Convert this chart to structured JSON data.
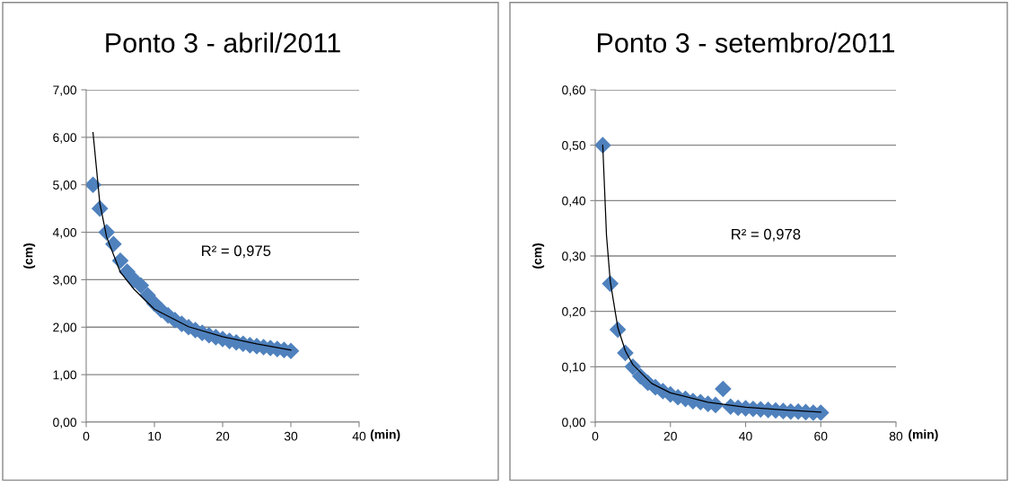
{
  "chart_data": [
    {
      "type": "scatter",
      "title": "Ponto 3 - abril/2011",
      "xlabel": "(min)",
      "ylabel": "(cm)",
      "annotations": [
        "R² = 0,975"
      ],
      "marker": "diamond",
      "grid": "y",
      "legend": false,
      "xlim": [
        0,
        40
      ],
      "xticks": [
        0,
        10,
        20,
        30,
        40
      ],
      "ylim": [
        0,
        7
      ],
      "yticks": [
        {
          "value": 0,
          "label": "0,00"
        },
        {
          "value": 1,
          "label": "1,00"
        },
        {
          "value": 2,
          "label": "2,00"
        },
        {
          "value": 3,
          "label": "3,00"
        },
        {
          "value": 4,
          "label": "4,00"
        },
        {
          "value": 5,
          "label": "5,00"
        },
        {
          "value": 6,
          "label": "6,00"
        },
        {
          "value": 7,
          "label": "7,00"
        }
      ],
      "series": [
        {
          "color": "#4f81bd",
          "x": [
            1,
            2,
            3,
            4,
            5,
            6,
            7,
            8,
            9,
            10,
            11,
            12,
            13,
            14,
            15,
            16,
            17,
            18,
            19,
            20,
            21,
            22,
            23,
            24,
            25,
            26,
            27,
            28,
            29,
            30
          ],
          "values": [
            5.0,
            4.5,
            4.0,
            3.75,
            3.4,
            3.17,
            3.0,
            2.88,
            2.67,
            2.5,
            2.36,
            2.25,
            2.15,
            2.07,
            2.0,
            1.94,
            1.88,
            1.83,
            1.79,
            1.75,
            1.71,
            1.68,
            1.65,
            1.62,
            1.6,
            1.58,
            1.56,
            1.54,
            1.52,
            1.5
          ]
        },
        {
          "type": "line",
          "color": "#000000",
          "marker": "none",
          "x": [
            1,
            2,
            3,
            5,
            7,
            10,
            15,
            20,
            25,
            30
          ],
          "values": [
            6.1,
            4.61,
            3.9,
            3.16,
            2.8,
            2.38,
            2.01,
            1.8,
            1.65,
            1.52
          ]
        }
      ]
    },
    {
      "type": "scatter",
      "title": "Ponto 3 - setembro/2011",
      "xlabel": "(min)",
      "ylabel": "(cm)",
      "annotations": [
        "R² = 0,978"
      ],
      "marker": "diamond",
      "grid": "y",
      "legend": false,
      "xlim": [
        0,
        80
      ],
      "xticks": [
        0,
        20,
        40,
        60,
        80
      ],
      "ylim": [
        0,
        0.6
      ],
      "yticks": [
        {
          "value": 0,
          "label": "0,00"
        },
        {
          "value": 0.1,
          "label": "0,10"
        },
        {
          "value": 0.2,
          "label": "0,20"
        },
        {
          "value": 0.3,
          "label": "0,30"
        },
        {
          "value": 0.4,
          "label": "0,40"
        },
        {
          "value": 0.5,
          "label": "0,50"
        },
        {
          "value": 0.6,
          "label": "0,60"
        }
      ],
      "series": [
        {
          "color": "#4f81bd",
          "x": [
            2,
            4,
            6,
            8,
            10,
            12,
            14,
            16,
            18,
            20,
            22,
            24,
            26,
            28,
            30,
            32,
            34,
            36,
            38,
            40,
            42,
            44,
            46,
            48,
            50,
            52,
            54,
            56,
            58,
            60
          ],
          "values": [
            0.5,
            0.25,
            0.167,
            0.125,
            0.1,
            0.083,
            0.071,
            0.063,
            0.056,
            0.05,
            0.045,
            0.042,
            0.038,
            0.036,
            0.033,
            0.031,
            0.06,
            0.028,
            0.026,
            0.025,
            0.024,
            0.023,
            0.022,
            0.021,
            0.02,
            0.019,
            0.019,
            0.018,
            0.017,
            0.017
          ]
        },
        {
          "type": "line",
          "color": "#000000",
          "marker": "none",
          "x": [
            2,
            3,
            4,
            6,
            8,
            10,
            15,
            20,
            30,
            40,
            50,
            60
          ],
          "values": [
            0.5,
            0.337,
            0.254,
            0.171,
            0.129,
            0.104,
            0.07,
            0.053,
            0.036,
            0.027,
            0.022,
            0.018
          ]
        }
      ]
    }
  ]
}
